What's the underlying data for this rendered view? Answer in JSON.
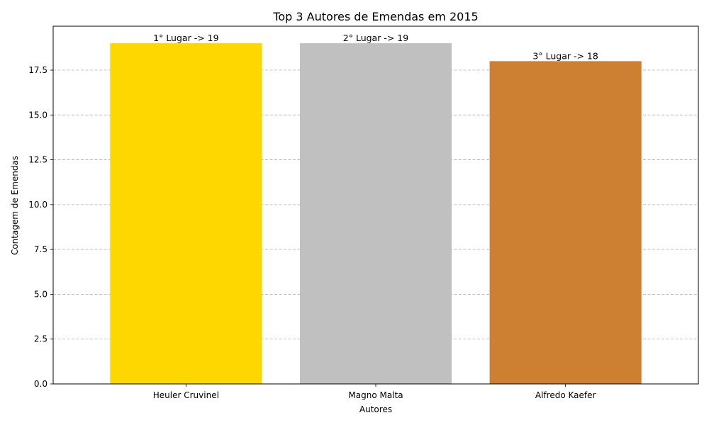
{
  "chart_data": {
    "type": "bar",
    "title": "Top 3 Autores de Emendas em 2015",
    "xlabel": "Autores",
    "ylabel": "Contagem de Emendas",
    "categories": [
      "Heuler Cruvinel",
      "Magno Malta",
      "Alfredo Kaefer"
    ],
    "values": [
      19,
      19,
      18
    ],
    "data_labels": [
      "1° Lugar -> 19",
      "2° Lugar -> 19",
      "3° Lugar -> 18"
    ],
    "bar_colors": [
      "#FFD700",
      "#C0C0C0",
      "#CD7F32"
    ],
    "ylim": [
      0,
      19.95
    ],
    "yticks": [
      0.0,
      2.5,
      5.0,
      7.5,
      10.0,
      12.5,
      15.0,
      17.5
    ],
    "ytick_labels": [
      "0.0",
      "2.5",
      "5.0",
      "7.5",
      "10.0",
      "12.5",
      "15.0",
      "17.5"
    ],
    "grid": "y-dashed",
    "legend": "none"
  }
}
